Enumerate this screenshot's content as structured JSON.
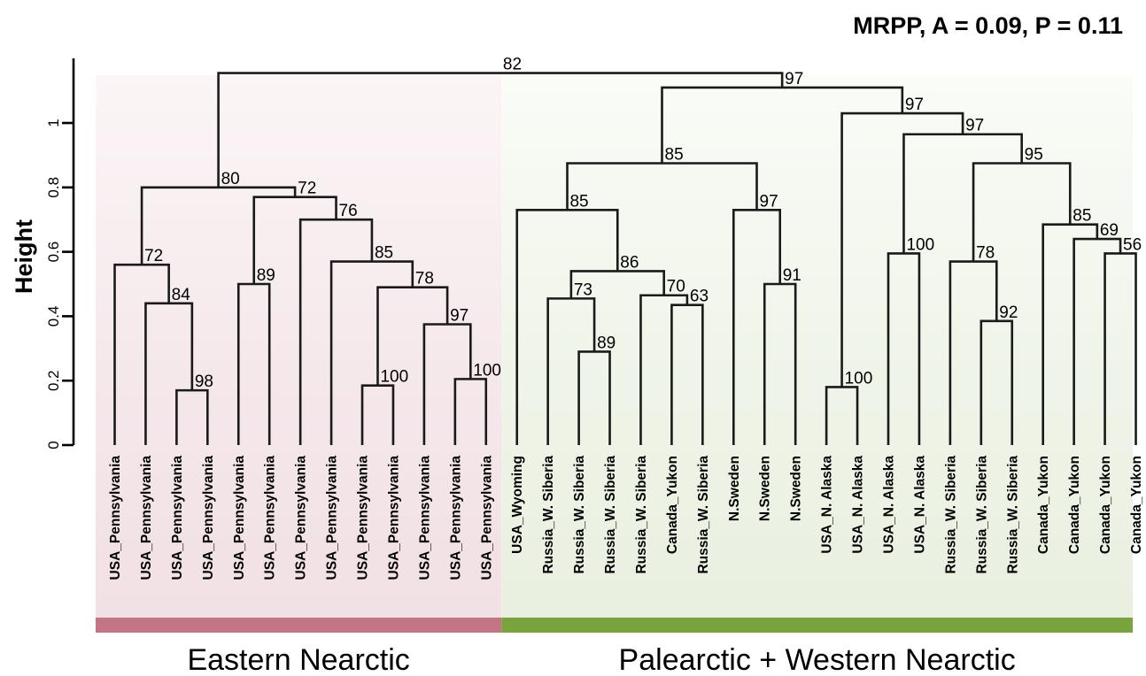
{
  "chart_data": {
    "type": "dendrogram",
    "annotation": "MRPP, A = 0.09, P = 0.11",
    "ylabel": "Height",
    "ylim": [
      0,
      1.15
    ],
    "yticks": [
      0,
      0.2,
      0.4,
      0.6,
      0.8,
      1
    ],
    "ytick_labels": [
      "0",
      "0.2",
      "0.4",
      "0.6",
      "0.8",
      "1"
    ],
    "leaves": [
      "USA_Pennsylvania",
      "USA_Pennsylvania",
      "USA_Pennsylvania",
      "USA_Pennsylvania",
      "USA_Pennsylvania",
      "USA_Pennsylvania",
      "USA_Pennsylvania",
      "USA_Pennsylvania",
      "USA_Pennsylvania",
      "USA_Pennsylvania",
      "USA_Pennsylvania",
      "USA_Pennsylvania",
      "USA_Pennsylvania",
      "USA_Wyoming",
      "Russia_W. Siberia",
      "Russia_W. Siberia",
      "Russia_W. Siberia",
      "Russia_W. Siberia",
      "Canada_Yukon",
      "Russia_W. Siberia",
      "N.Sweden",
      "N.Sweden",
      "N.Sweden",
      "USA_N. Alaska",
      "USA_N. Alaska",
      "USA_N. Alaska",
      "USA_N. Alaska",
      "Russia_W. Siberia",
      "Russia_W. Siberia",
      "Russia_W. Siberia",
      "Canada_Yukon",
      "Canada_Yukon",
      "Canada_Yukon",
      "Canada_Yukon"
    ],
    "merges": [
      {
        "id": "m1",
        "children": [
          "L2",
          "L3"
        ],
        "height": 0.17,
        "support": "98"
      },
      {
        "id": "m2",
        "children": [
          "L1",
          "m1"
        ],
        "height": 0.44,
        "support": "84"
      },
      {
        "id": "m3",
        "children": [
          "L0",
          "m2"
        ],
        "height": 0.56,
        "support": "72"
      },
      {
        "id": "m4",
        "children": [
          "L4",
          "L5"
        ],
        "height": 0.5,
        "support": "89"
      },
      {
        "id": "m5",
        "children": [
          "L8",
          "L9"
        ],
        "height": 0.185,
        "support": "100"
      },
      {
        "id": "m6",
        "children": [
          "L11",
          "L12"
        ],
        "height": 0.205,
        "support": "100"
      },
      {
        "id": "m7",
        "children": [
          "L10",
          "m6"
        ],
        "height": 0.375,
        "support": "97"
      },
      {
        "id": "m8",
        "children": [
          "m5",
          "m7"
        ],
        "height": 0.49,
        "support": "78"
      },
      {
        "id": "m9",
        "children": [
          "L7",
          "m8"
        ],
        "height": 0.57,
        "support": "85"
      },
      {
        "id": "m10",
        "children": [
          "L6",
          "m9"
        ],
        "height": 0.7,
        "support": "76"
      },
      {
        "id": "m11",
        "children": [
          "m4",
          "m10"
        ],
        "height": 0.77,
        "support": "72"
      },
      {
        "id": "m12",
        "children": [
          "m3",
          "m11"
        ],
        "height": 0.8,
        "support": "80"
      },
      {
        "id": "m13",
        "children": [
          "L15",
          "L16"
        ],
        "height": 0.29,
        "support": "89"
      },
      {
        "id": "m14",
        "children": [
          "L14",
          "m13"
        ],
        "height": 0.455,
        "support": "73"
      },
      {
        "id": "m15",
        "children": [
          "L18",
          "L19"
        ],
        "height": 0.435,
        "support": "63"
      },
      {
        "id": "m16",
        "children": [
          "L17",
          "m15"
        ],
        "height": 0.465,
        "support": "70"
      },
      {
        "id": "m17",
        "children": [
          "m14",
          "m16"
        ],
        "height": 0.54,
        "support": "86"
      },
      {
        "id": "m18",
        "children": [
          "L13",
          "m17"
        ],
        "height": 0.73,
        "support": "85"
      },
      {
        "id": "m19",
        "children": [
          "L21",
          "L22"
        ],
        "height": 0.5,
        "support": "91"
      },
      {
        "id": "m20",
        "children": [
          "L20",
          "m19"
        ],
        "height": 0.73,
        "support": "97"
      },
      {
        "id": "m21",
        "children": [
          "m18",
          "m20"
        ],
        "height": 0.875,
        "support": "85"
      },
      {
        "id": "m22",
        "children": [
          "L23",
          "L24"
        ],
        "height": 0.18,
        "support": "100"
      },
      {
        "id": "m23",
        "children": [
          "L25",
          "L26"
        ],
        "height": 0.595,
        "support": "100"
      },
      {
        "id": "m24",
        "children": [
          "L28",
          "L29"
        ],
        "height": 0.385,
        "support": "92"
      },
      {
        "id": "m25",
        "children": [
          "L27",
          "m24"
        ],
        "height": 0.57,
        "support": "78"
      },
      {
        "id": "m26",
        "children": [
          "L32",
          "L33"
        ],
        "height": 0.595,
        "support": "56"
      },
      {
        "id": "m27",
        "children": [
          "L31",
          "m26"
        ],
        "height": 0.64,
        "support": "69"
      },
      {
        "id": "m28",
        "children": [
          "L30",
          "m27"
        ],
        "height": 0.685,
        "support": "85"
      },
      {
        "id": "m29",
        "children": [
          "m25",
          "m28"
        ],
        "height": 0.875,
        "support": "95"
      },
      {
        "id": "m30",
        "children": [
          "m23",
          "m29"
        ],
        "height": 0.965,
        "support": "97"
      },
      {
        "id": "m31",
        "children": [
          "m22",
          "m30"
        ],
        "height": 1.03,
        "support": "97"
      },
      {
        "id": "m32",
        "children": [
          "m21",
          "m31"
        ],
        "height": 1.11,
        "support": "97"
      },
      {
        "id": "m33",
        "children": [
          "m12",
          "m32"
        ],
        "height": 1.155,
        "support": "82"
      }
    ],
    "groups": [
      {
        "name": "Eastern Nearctic",
        "color": "#c27585",
        "first_leaf": 0,
        "last_leaf": 12
      },
      {
        "name": "Palearctic + Western Nearctic",
        "color": "#79a33e",
        "first_leaf": 13,
        "last_leaf": 33
      }
    ]
  }
}
